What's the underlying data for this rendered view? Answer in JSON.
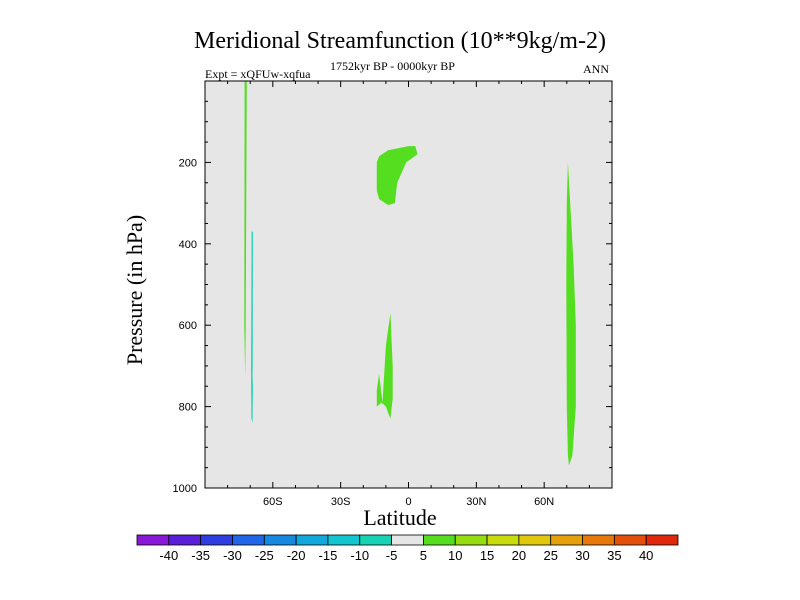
{
  "chart_data": {
    "type": "contour",
    "title": "Meridional Streamfunction (10**9kg/m-2)",
    "subtitle_left": "Expt = xQFUw-xqfua",
    "subtitle_center": "1752kyr BP - 0000kyr BP",
    "subtitle_right": "ANN",
    "xlabel": "Latitude",
    "ylabel": "Pressure (in hPa)",
    "xlim": [
      -90,
      90
    ],
    "ylim": [
      1000,
      0
    ],
    "xticks": [
      {
        "value": -60,
        "label": "60S"
      },
      {
        "value": -30,
        "label": "30S"
      },
      {
        "value": 0,
        "label": "0"
      },
      {
        "value": 30,
        "label": "30N"
      },
      {
        "value": 60,
        "label": "60N"
      }
    ],
    "yticks": [
      {
        "value": 200,
        "label": "200"
      },
      {
        "value": 400,
        "label": "400"
      },
      {
        "value": 600,
        "label": "600"
      },
      {
        "value": 800,
        "label": "800"
      },
      {
        "value": 1000,
        "label": "1000"
      }
    ],
    "background_color": "#e6e6e6",
    "colorbar": {
      "labels": [
        "-40",
        "-35",
        "-30",
        "-25",
        "-20",
        "-15",
        "-10",
        "-5",
        "5",
        "10",
        "15",
        "20",
        "25",
        "30",
        "35",
        "40"
      ],
      "colors": [
        "#8a18d8",
        "#5a1fd8",
        "#2f3ee0",
        "#2265e8",
        "#1589e0",
        "#13a8dc",
        "#12c5cf",
        "#18d3b3",
        "#e6e6e6",
        "#55dd20",
        "#95dd10",
        "#c8dc0c",
        "#e2c80c",
        "#e6a00c",
        "#e6780c",
        "#e4500c",
        "#e0280c"
      ]
    },
    "regions": [
      {
        "name": "left-thin-band",
        "level": "5 to 10",
        "color": "#55dd20",
        "points": [
          [
            -72.5,
            0
          ],
          [
            -71.5,
            0
          ],
          [
            -72.0,
            600
          ],
          [
            -72.2,
            730
          ],
          [
            -72.6,
            600
          ]
        ]
      },
      {
        "name": "left-negative-band",
        "level": "-10 to -5",
        "color": "#18d3b3",
        "points": [
          [
            -69.4,
            370
          ],
          [
            -68.8,
            370
          ],
          [
            -68.9,
            700
          ],
          [
            -69.0,
            720
          ],
          [
            -68.8,
            750
          ],
          [
            -69.0,
            840
          ],
          [
            -69.5,
            830
          ],
          [
            -69.6,
            710
          ]
        ]
      },
      {
        "name": "upper-cell",
        "level": "5 to 10",
        "color": "#55dd20",
        "points": [
          [
            -13,
            185
          ],
          [
            -9,
            170
          ],
          [
            0,
            160
          ],
          [
            3,
            160
          ],
          [
            4,
            180
          ],
          [
            -1,
            200
          ],
          [
            -5,
            250
          ],
          [
            -6,
            300
          ],
          [
            -9,
            305
          ],
          [
            -13,
            290
          ],
          [
            -14,
            270
          ],
          [
            -14,
            200
          ]
        ]
      },
      {
        "name": "lower-cell",
        "level": "5 to 10",
        "color": "#55dd20",
        "points": [
          [
            -8,
            570
          ],
          [
            -7,
            700
          ],
          [
            -7,
            780
          ],
          [
            -8,
            830
          ],
          [
            -10,
            800
          ],
          [
            -12,
            790
          ],
          [
            -14,
            800
          ],
          [
            -14,
            760
          ],
          [
            -13,
            720
          ],
          [
            -11.5,
            790
          ],
          [
            -10,
            650
          ]
        ]
      },
      {
        "name": "right-band",
        "level": "5 to 10",
        "color": "#55dd20",
        "points": [
          [
            70.5,
            200
          ],
          [
            71.5,
            300
          ],
          [
            73,
            450
          ],
          [
            74,
            600
          ],
          [
            74,
            800
          ],
          [
            72.5,
            920
          ],
          [
            71,
            945
          ],
          [
            70.5,
            920
          ],
          [
            70,
            800
          ],
          [
            69.8,
            500
          ],
          [
            70,
            300
          ]
        ]
      }
    ]
  }
}
